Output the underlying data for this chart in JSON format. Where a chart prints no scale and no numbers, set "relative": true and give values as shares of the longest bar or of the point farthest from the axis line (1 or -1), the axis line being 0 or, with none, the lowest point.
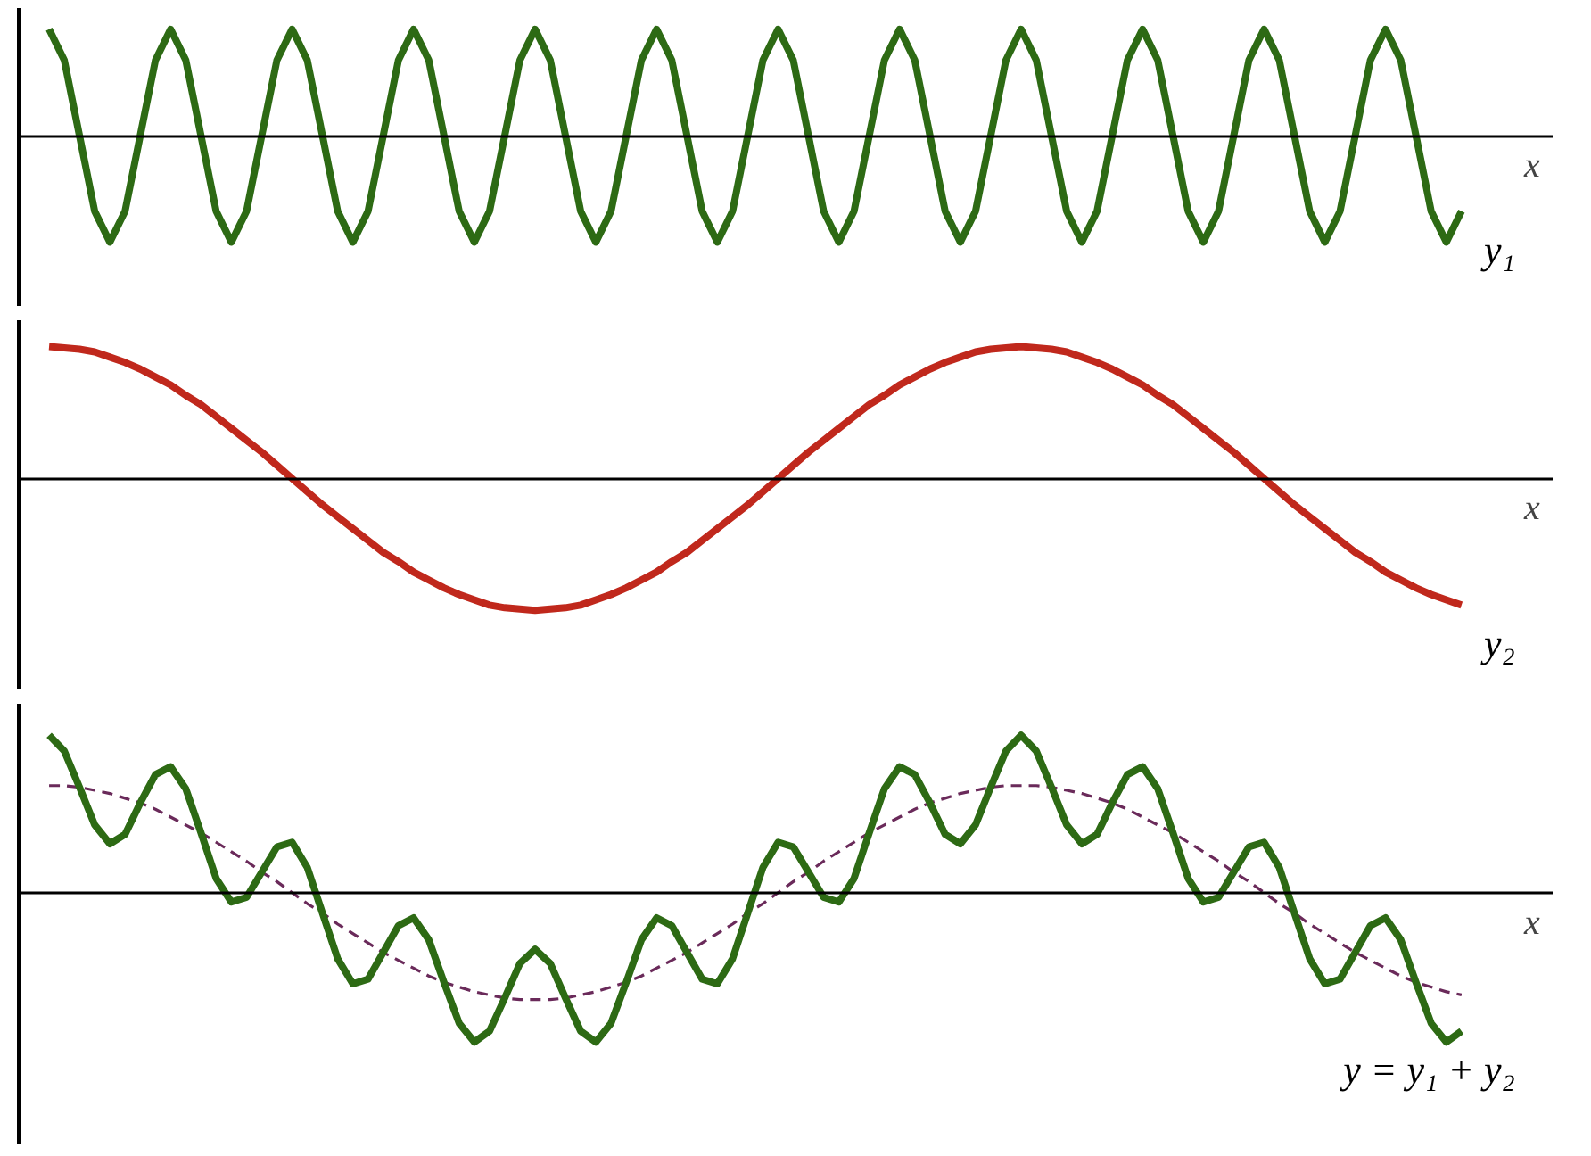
{
  "chart_data": [
    {
      "type": "line",
      "relative": true,
      "xlabel": "x",
      "categories": [
        null,
        null,
        null,
        null,
        null,
        null,
        null,
        null,
        null,
        null,
        null,
        null,
        null,
        null,
        null,
        null,
        null,
        null,
        null,
        null,
        null,
        null,
        null,
        null,
        null,
        null,
        null,
        null,
        null,
        null,
        null,
        null,
        null,
        null,
        null,
        null,
        null,
        null,
        null,
        null,
        null,
        null,
        null,
        null,
        null,
        null,
        null,
        null,
        null,
        null,
        null,
        null,
        null,
        null,
        null,
        null,
        null,
        null,
        null,
        null,
        null,
        null,
        null,
        null,
        null,
        null,
        null,
        null,
        null,
        null,
        null,
        null,
        null,
        null,
        null,
        null,
        null,
        null,
        null,
        null,
        null,
        null,
        null,
        null,
        null,
        null,
        null,
        null,
        null,
        null,
        null,
        null,
        null,
        null
      ],
      "series": [
        {
          "name": "y₁",
          "color": "#2d6a14",
          "values": [
            1,
            0.71,
            0,
            -0.71,
            -1,
            -0.71,
            0,
            0.71,
            1,
            0.71,
            0,
            -0.71,
            -1,
            -0.71,
            0,
            0.71,
            1,
            0.71,
            0,
            -0.71,
            -1,
            -0.71,
            0,
            0.71,
            1,
            0.71,
            0,
            -0.71,
            -1,
            -0.71,
            0,
            0.71,
            1,
            0.71,
            0,
            -0.71,
            -1,
            -0.71,
            0,
            0.71,
            1,
            0.71,
            0,
            -0.71,
            -1,
            -0.71,
            0,
            0.71,
            1,
            0.71,
            0,
            -0.71,
            -1,
            -0.71,
            0,
            0.71,
            1,
            0.71,
            0,
            -0.71,
            -1,
            -0.71,
            0,
            0.71,
            1,
            0.71,
            0,
            -0.71,
            -1,
            -0.71,
            0,
            0.71,
            1,
            0.71,
            0,
            -0.71,
            -1,
            -0.71,
            0,
            0.71,
            1,
            0.71,
            0,
            -0.71,
            -1,
            -0.71,
            0,
            0.71,
            1,
            0.71,
            0,
            -0.71,
            -1,
            -0.71
          ]
        }
      ]
    },
    {
      "type": "line",
      "relative": true,
      "xlabel": "x",
      "categories": [
        null,
        null,
        null,
        null,
        null,
        null,
        null,
        null,
        null,
        null,
        null,
        null,
        null,
        null,
        null,
        null,
        null,
        null,
        null,
        null,
        null,
        null,
        null,
        null,
        null,
        null,
        null,
        null,
        null,
        null,
        null,
        null,
        null,
        null,
        null,
        null,
        null,
        null,
        null,
        null,
        null,
        null,
        null,
        null,
        null,
        null,
        null,
        null,
        null,
        null,
        null,
        null,
        null,
        null,
        null,
        null,
        null,
        null,
        null,
        null,
        null,
        null,
        null,
        null,
        null,
        null,
        null,
        null,
        null,
        null,
        null,
        null,
        null,
        null,
        null,
        null,
        null,
        null,
        null,
        null,
        null,
        null,
        null,
        null,
        null,
        null,
        null,
        null,
        null,
        null,
        null,
        null,
        null,
        null
      ],
      "series": [
        {
          "name": "y₂",
          "color": "#c0281c",
          "values": [
            1,
            0.99,
            0.98,
            0.96,
            0.92,
            0.88,
            0.83,
            0.77,
            0.71,
            0.63,
            0.56,
            0.47,
            0.38,
            0.29,
            0.2,
            0.1,
            0,
            -0.1,
            -0.2,
            -0.29,
            -0.38,
            -0.47,
            -0.56,
            -0.63,
            -0.71,
            -0.77,
            -0.83,
            -0.88,
            -0.92,
            -0.96,
            -0.98,
            -0.99,
            -1,
            -0.99,
            -0.98,
            -0.96,
            -0.92,
            -0.88,
            -0.83,
            -0.77,
            -0.71,
            -0.63,
            -0.56,
            -0.47,
            -0.38,
            -0.29,
            -0.2,
            -0.1,
            0,
            0.1,
            0.2,
            0.29,
            0.38,
            0.47,
            0.56,
            0.63,
            0.71,
            0.77,
            0.83,
            0.88,
            0.92,
            0.96,
            0.98,
            0.99,
            1,
            0.99,
            0.98,
            0.96,
            0.92,
            0.88,
            0.83,
            0.77,
            0.71,
            0.63,
            0.56,
            0.47,
            0.38,
            0.29,
            0.2,
            0.1,
            0,
            -0.1,
            -0.2,
            -0.29,
            -0.38,
            -0.47,
            -0.56,
            -0.63,
            -0.71,
            -0.77,
            -0.83,
            -0.88,
            -0.92,
            -0.96
          ]
        }
      ]
    },
    {
      "type": "line",
      "relative": true,
      "xlabel": "x",
      "categories": [
        null,
        null,
        null,
        null,
        null,
        null,
        null,
        null,
        null,
        null,
        null,
        null,
        null,
        null,
        null,
        null,
        null,
        null,
        null,
        null,
        null,
        null,
        null,
        null,
        null,
        null,
        null,
        null,
        null,
        null,
        null,
        null,
        null,
        null,
        null,
        null,
        null,
        null,
        null,
        null,
        null,
        null,
        null,
        null,
        null,
        null,
        null,
        null,
        null,
        null,
        null,
        null,
        null,
        null,
        null,
        null,
        null,
        null,
        null,
        null,
        null,
        null,
        null,
        null,
        null,
        null,
        null,
        null,
        null,
        null,
        null,
        null,
        null,
        null,
        null,
        null,
        null,
        null,
        null,
        null,
        null,
        null,
        null,
        null,
        null,
        null,
        null,
        null,
        null,
        null,
        null,
        null,
        null,
        null
      ],
      "series": [
        {
          "color": "#6a2a5a",
          "line_style": "dashed",
          "values": [
            0.68,
            0.68,
            0.67,
            0.65,
            0.63,
            0.6,
            0.57,
            0.53,
            0.48,
            0.43,
            0.38,
            0.32,
            0.26,
            0.2,
            0.13,
            0.07,
            0,
            -0.07,
            -0.13,
            -0.2,
            -0.26,
            -0.32,
            -0.38,
            -0.43,
            -0.48,
            -0.53,
            -0.57,
            -0.6,
            -0.63,
            -0.65,
            -0.67,
            -0.68,
            -0.68,
            -0.68,
            -0.67,
            -0.65,
            -0.63,
            -0.6,
            -0.57,
            -0.53,
            -0.48,
            -0.43,
            -0.38,
            -0.32,
            -0.26,
            -0.2,
            -0.13,
            -0.07,
            0,
            0.07,
            0.13,
            0.2,
            0.26,
            0.32,
            0.38,
            0.43,
            0.48,
            0.53,
            0.57,
            0.6,
            0.63,
            0.65,
            0.67,
            0.68,
            0.68,
            0.68,
            0.67,
            0.65,
            0.63,
            0.6,
            0.57,
            0.53,
            0.48,
            0.43,
            0.38,
            0.32,
            0.26,
            0.2,
            0.13,
            0.07,
            0,
            -0.07,
            -0.13,
            -0.2,
            -0.26,
            -0.32,
            -0.38,
            -0.43,
            -0.48,
            -0.53,
            -0.57,
            -0.6,
            -0.63,
            -0.65
          ]
        },
        {
          "name": "y = y₁ + y₂",
          "color": "#2d6a14",
          "values": [
            1,
            0.9,
            0.67,
            0.43,
            0.31,
            0.37,
            0.57,
            0.75,
            0.8,
            0.66,
            0.38,
            0.09,
            -0.06,
            -0.03,
            0.13,
            0.29,
            0.32,
            0.16,
            -0.13,
            -0.42,
            -0.58,
            -0.55,
            -0.38,
            -0.21,
            -0.16,
            -0.3,
            -0.57,
            -0.83,
            -0.95,
            -0.88,
            -0.67,
            -0.45,
            -0.36,
            -0.45,
            -0.67,
            -0.88,
            -0.95,
            -0.83,
            -0.57,
            -0.3,
            -0.16,
            -0.21,
            -0.38,
            -0.55,
            -0.58,
            -0.42,
            -0.13,
            0.16,
            0.32,
            0.29,
            0.13,
            -0.03,
            -0.06,
            0.09,
            0.38,
            0.66,
            0.8,
            0.75,
            0.57,
            0.37,
            0.31,
            0.43,
            0.67,
            0.9,
            1,
            0.9,
            0.67,
            0.43,
            0.31,
            0.37,
            0.57,
            0.75,
            0.8,
            0.66,
            0.38,
            0.09,
            -0.06,
            -0.03,
            0.13,
            0.29,
            0.32,
            0.16,
            -0.13,
            -0.42,
            -0.58,
            -0.55,
            -0.38,
            -0.21,
            -0.16,
            -0.3,
            -0.57,
            -0.83,
            -0.95,
            -0.88
          ]
        }
      ]
    }
  ]
}
